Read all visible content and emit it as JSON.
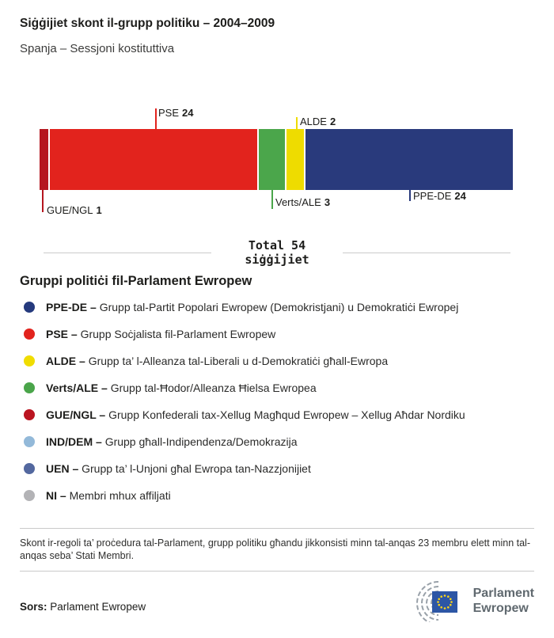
{
  "header": {
    "title": "Siġġijiet skont il-grupp politiku – 2004–2009",
    "subtitle": "Spanja – Sessjoni kostituttiva"
  },
  "chart_data": {
    "type": "bar",
    "orientation": "horizontal-stacked",
    "title": "Siġġijiet skont il-grupp politiku – 2004–2009",
    "total_seats": 54,
    "total": {
      "line1": "Total 54",
      "line2": "siġġijiet"
    },
    "categories": [
      "GUE/NGL",
      "PSE",
      "Verts/ALE",
      "ALDE",
      "PPE-DE"
    ],
    "values": [
      1,
      24,
      3,
      2,
      24
    ],
    "segments": [
      {
        "group": "GUE/NGL",
        "seats": 1,
        "color": "#b5161f",
        "label_position": "below"
      },
      {
        "group": "PSE",
        "seats": 24,
        "color": "#e2231d",
        "label_position": "above"
      },
      {
        "group": "Verts/ALE",
        "seats": 3,
        "color": "#4ba64b",
        "label_position": "below"
      },
      {
        "group": "ALDE",
        "seats": 2,
        "color": "#eedc00",
        "label_position": "above"
      },
      {
        "group": "PPE-DE",
        "seats": 24,
        "color": "#293a7c",
        "label_position": "below"
      }
    ]
  },
  "legend": {
    "heading": "Gruppi politiċi fil-Parlament Ewropew",
    "items": [
      {
        "name": "PPE-DE –",
        "description": "Grupp tal-Partit Popolari Ewropew (Demokristjani) u Demokratiċi Ewropej",
        "color": "#253a7d"
      },
      {
        "name": "PSE –",
        "description": "Grupp Soċjalista fil-Parlament Ewropew",
        "color": "#e2231d"
      },
      {
        "name": "ALDE –",
        "description": "Grupp ta’ l-Alleanza tal-Liberali u d-Demokratiċi għall-Ewropa",
        "color": "#f0dd00"
      },
      {
        "name": "Verts/ALE –",
        "description": "Grupp tal-Ħodor/Alleanza Ħielsa Ewropea",
        "color": "#4aa54a"
      },
      {
        "name": "GUE/NGL –",
        "description": "Grupp Konfederali tax-Xellug Magħqud Ewropew – Xellug Aħdar Nordiku",
        "color": "#bb1420"
      },
      {
        "name": "IND/DEM –",
        "description": "Grupp għall-Indipendenza/Demokrazija",
        "color": "#93b9d9"
      },
      {
        "name": "UEN –",
        "description": "Grupp ta’ l-Unjoni għal Ewropa tan-Nazzjonijiet",
        "color": "#53689f"
      },
      {
        "name": "NI –",
        "description": "Membri mhux affiljati",
        "color": "#b3b3b6"
      }
    ]
  },
  "footnote": "Skont ir-regoli ta’ proċedura tal-Parlament, grupp politiku għandu jikkonsisti minn tal-anqas 23 membru elett minn tal-anqas seba’ Stati Membri.",
  "source": {
    "label": "Sors:",
    "value": "Parlament Ewropew"
  },
  "logo": {
    "line1": "Parlament",
    "line2": "Ewropew"
  }
}
